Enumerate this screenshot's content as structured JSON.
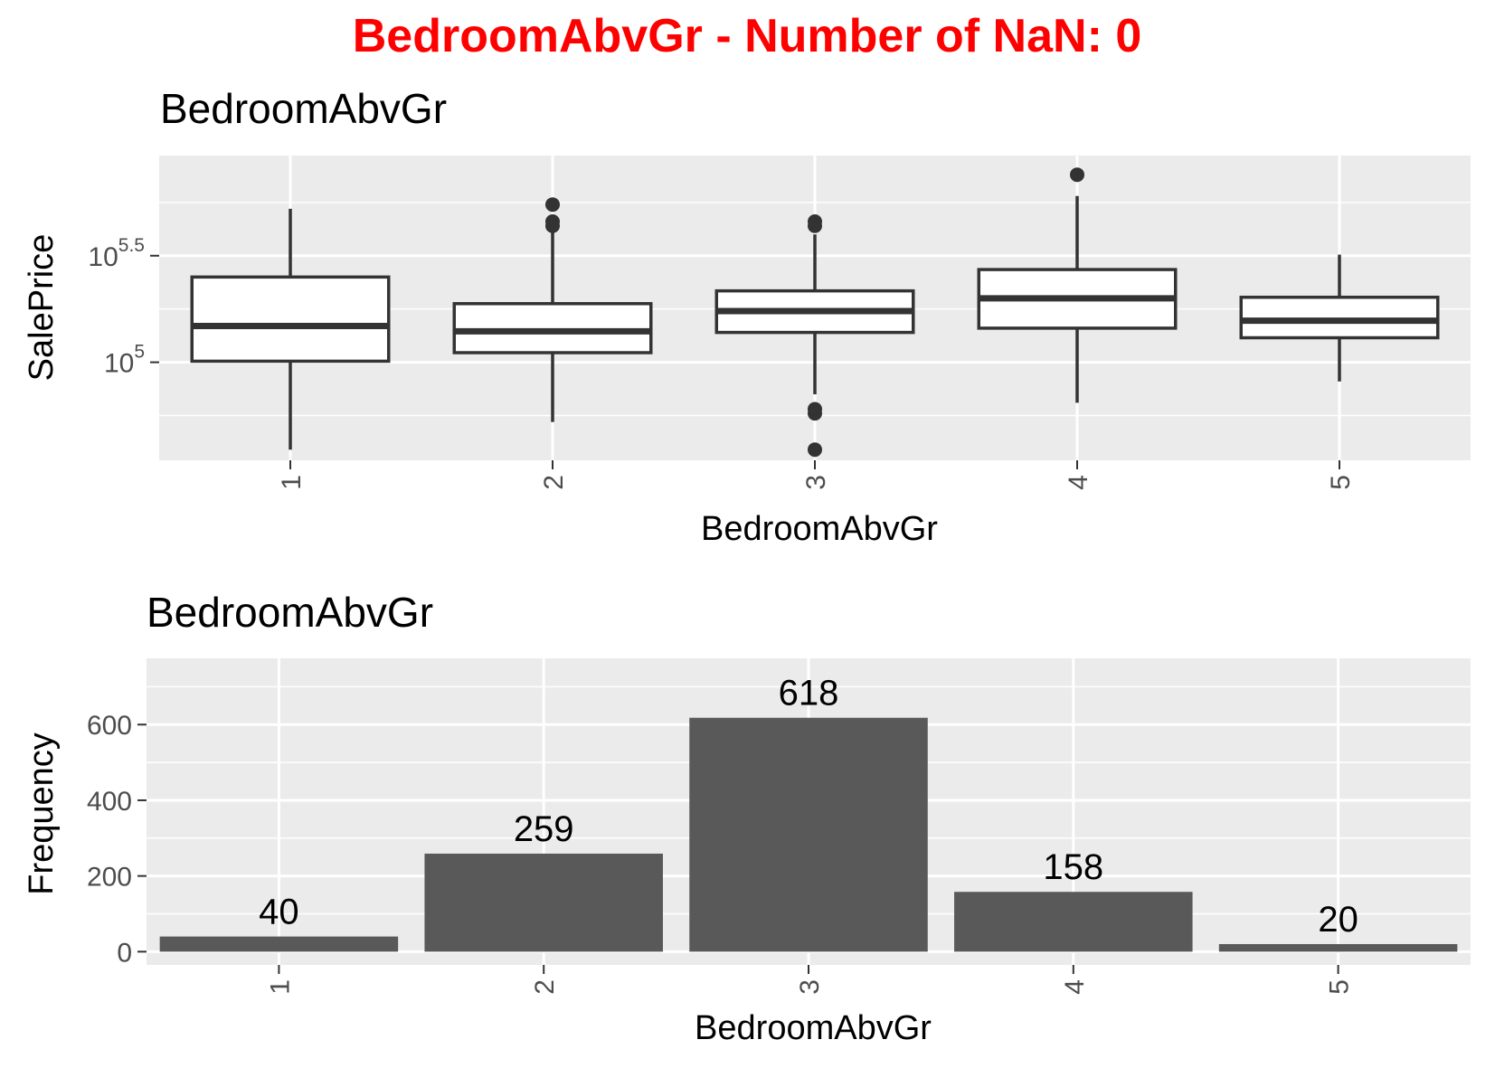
{
  "figure": {
    "main_title": "BedroomAbvGr - Number of NaN: 0",
    "main_title_color": "#ff0000",
    "panel_background": "#ebebeb",
    "grid_color": "#ffffff"
  },
  "chart_data": [
    {
      "type": "box",
      "title": "BedroomAbvGr",
      "xlabel": "BedroomAbvGr",
      "ylabel": "SalePrice",
      "yscale": "log10",
      "ylim": [
        4.54,
        5.97
      ],
      "y_ticks": [
        {
          "value": 5.0,
          "base": "10",
          "exp": "5"
        },
        {
          "value": 5.5,
          "base": "10",
          "exp": "5.5"
        }
      ],
      "categories": [
        "1",
        "2",
        "3",
        "4",
        "5"
      ],
      "boxes": [
        {
          "category": "1",
          "whisker_low": 4.59,
          "q1": 5.005,
          "median": 5.17,
          "q3": 5.4,
          "whisker_high": 5.72,
          "outliers": []
        },
        {
          "category": "2",
          "whisker_low": 4.72,
          "q1": 5.045,
          "median": 5.145,
          "q3": 5.275,
          "whisker_high": 5.61,
          "outliers": [
            5.74,
            5.66,
            5.64
          ]
        },
        {
          "category": "3",
          "whisker_low": 4.85,
          "q1": 5.14,
          "median": 5.24,
          "q3": 5.335,
          "whisker_high": 5.6,
          "outliers": [
            5.66,
            5.64,
            4.78,
            4.76,
            4.59
          ]
        },
        {
          "category": "4",
          "whisker_low": 4.81,
          "q1": 5.16,
          "median": 5.3,
          "q3": 5.435,
          "whisker_high": 5.78,
          "outliers": [
            5.88
          ]
        },
        {
          "category": "5",
          "whisker_low": 4.91,
          "q1": 5.115,
          "median": 5.195,
          "q3": 5.305,
          "whisker_high": 5.505,
          "outliers": []
        }
      ],
      "box_fill": "#ffffff",
      "box_stroke": "#333333",
      "outlier_color": "#333333",
      "grid": true
    },
    {
      "type": "bar",
      "title": "BedroomAbvGr",
      "xlabel": "BedroomAbvGr",
      "ylabel": "Frequency",
      "ylim": [
        -35,
        775
      ],
      "y_ticks": [
        0,
        200,
        400,
        600
      ],
      "categories": [
        "1",
        "2",
        "3",
        "4",
        "5"
      ],
      "values": [
        40,
        259,
        618,
        158,
        20
      ],
      "data_labels": [
        "40",
        "259",
        "618",
        "158",
        "20"
      ],
      "bar_color": "#595959",
      "grid": true
    }
  ]
}
